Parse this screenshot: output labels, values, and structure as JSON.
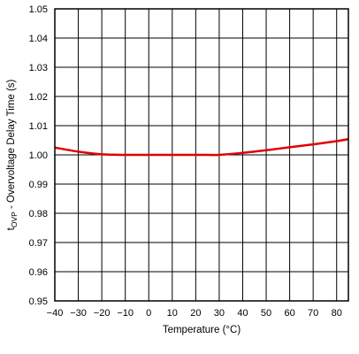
{
  "chart_data": {
    "type": "line",
    "xlabel": "Temperature (°C)",
    "ylabel": {
      "prefix": "t",
      "subscript": "OVP",
      "rest": " - Overvoltage Delay Time (s)"
    },
    "xlim": [
      -40,
      85
    ],
    "ylim": [
      0.95,
      1.05
    ],
    "x_ticks": [
      -40,
      -30,
      -20,
      -10,
      0,
      10,
      20,
      30,
      40,
      50,
      60,
      70,
      80
    ],
    "x_tick_labels": [
      "−40",
      "−30",
      "−20",
      "−10",
      "0",
      "10",
      "20",
      "30",
      "40",
      "50",
      "60",
      "70",
      "80"
    ],
    "y_ticks": [
      0.95,
      0.96,
      0.97,
      0.98,
      0.99,
      1.0,
      1.01,
      1.02,
      1.03,
      1.04,
      1.05
    ],
    "y_tick_labels": [
      "0.95",
      "0.96",
      "0.97",
      "0.98",
      "0.99",
      "1.00",
      "1.01",
      "1.02",
      "1.03",
      "1.04",
      "1.05"
    ],
    "grid": true,
    "series": [
      {
        "color": "#e00000",
        "x": [
          -40,
          -30,
          -20,
          -10,
          0,
          10,
          20,
          25,
          30,
          40,
          50,
          60,
          70,
          80,
          85
        ],
        "y": [
          1.0025,
          1.0011,
          1.0002,
          1.0,
          1.0,
          1.0,
          1.0,
          1.0,
          1.0,
          1.0007,
          1.0016,
          1.0026,
          1.0036,
          1.0047,
          1.0054
        ]
      }
    ]
  }
}
